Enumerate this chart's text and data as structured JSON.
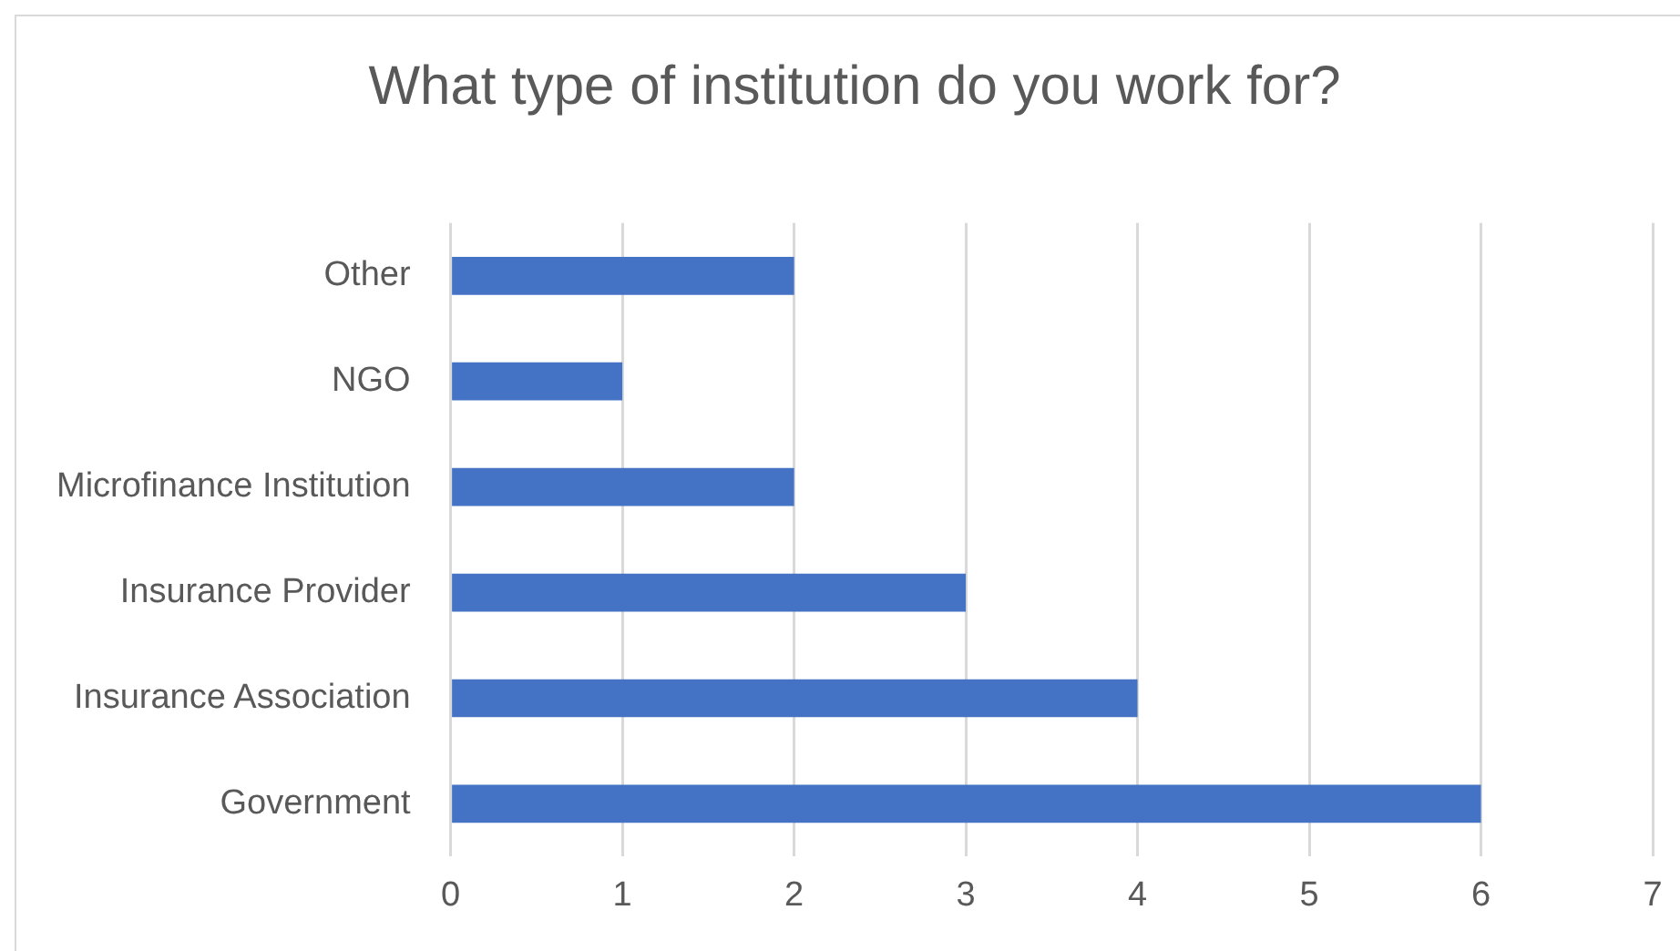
{
  "chart_data": {
    "type": "bar",
    "orientation": "horizontal",
    "title": "What type of institution do you work for?",
    "categories": [
      "Other",
      "NGO",
      "Microfinance Institution",
      "Insurance Provider",
      "Insurance Association",
      "Government"
    ],
    "values": [
      2,
      1,
      2,
      3,
      4,
      6
    ],
    "color": "#4472c4",
    "xlim": [
      0,
      7
    ],
    "xticks": [
      0,
      1,
      2,
      3,
      4,
      5,
      6,
      7
    ],
    "grid": "x",
    "legend": false
  }
}
